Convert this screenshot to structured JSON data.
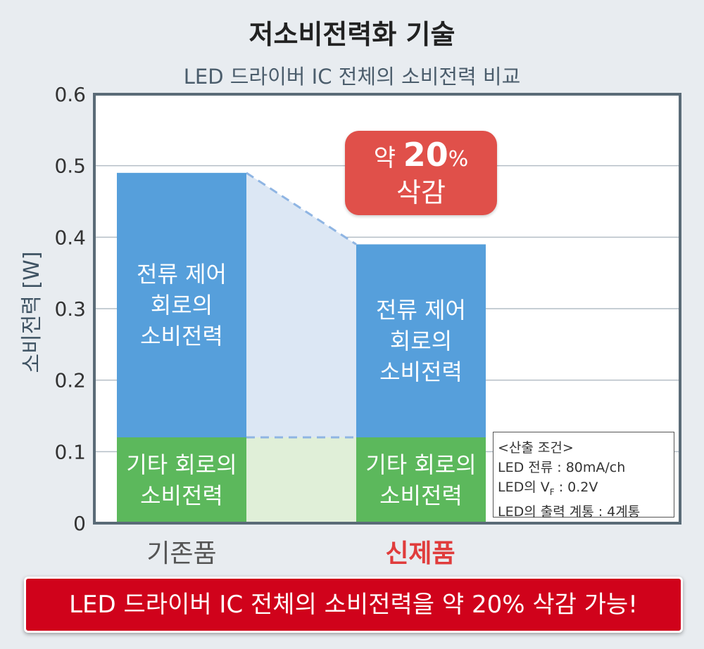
{
  "title": "저소비전력화 기술",
  "subtitle": "LED 드라이버 IC 전체의 소비전력 비교",
  "colors": {
    "current_control": "#569fdb",
    "other_circuit": "#5cb85c",
    "reduction_badge": "#e0504a",
    "banner": "#d0021b",
    "axis": "#5a6b77"
  },
  "chart_data": {
    "type": "bar",
    "stacked": true,
    "categories": [
      "기존품",
      "신제품"
    ],
    "ylabel": "소비전력 [W]",
    "ylim": [
      0,
      0.6
    ],
    "yticks": [
      "0",
      "0.1",
      "0.2",
      "0.3",
      "0.4",
      "0.5",
      "0.6"
    ],
    "grid": true,
    "series": [
      {
        "name": "기타 회로의 소비전력",
        "values": [
          0.12,
          0.12
        ],
        "label_lines": [
          "기타 회로의",
          "소비전력"
        ]
      },
      {
        "name": "전류 제어 회로의 소비전력",
        "values": [
          0.37,
          0.27
        ],
        "label_lines": [
          "전류 제어",
          "회로의",
          "소비전력"
        ]
      }
    ],
    "totals": [
      0.49,
      0.39
    ],
    "annotation": {
      "prefix": "약",
      "value": "20",
      "unit": "%",
      "text": "삭감"
    }
  },
  "conditions": {
    "heading": "<산출 조건>",
    "led_current": "LED 전류 : 80mA/ch",
    "vf_prefix": "LED의 V",
    "vf_sub": "F",
    "vf_value": " : 0.2V",
    "series_count": "LED의 출력 계통 : 4계통"
  },
  "banner_text": "LED 드라이버 IC 전체의 소비전력을 약 20% 삭감 가능!"
}
